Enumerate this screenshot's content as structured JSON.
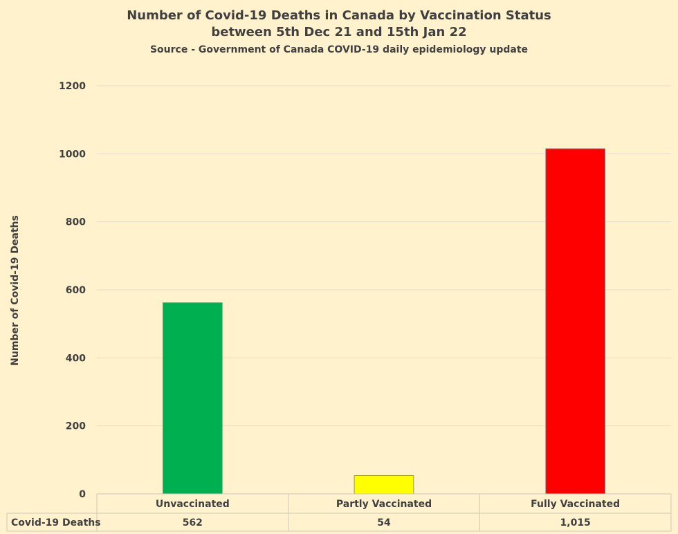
{
  "chart_data": {
    "type": "bar",
    "title": "Number of Covid-19 Deaths in Canada by Vaccination Status",
    "title_line2": "between 5th Dec 21 and 15th Jan 22",
    "subtitle": "Source - Government of Canada COVID-19 daily epidemiology update",
    "ylabel": "Number of Covid-19 Deaths",
    "ylim": [
      0,
      1200
    ],
    "yticks": [
      0,
      200,
      400,
      600,
      800,
      1000,
      1200
    ],
    "grid": true,
    "categories": [
      "Unvaccinated",
      "Partly Vaccinated",
      "Fully Vaccinated"
    ],
    "series": [
      {
        "name": "Covid-19 Deaths",
        "values": [
          562,
          54,
          1015
        ],
        "value_labels": [
          "562",
          "54",
          "1,015"
        ],
        "colors": [
          "#00b050",
          "#ffff00",
          "#ff0000"
        ]
      }
    ],
    "data_table": true
  }
}
